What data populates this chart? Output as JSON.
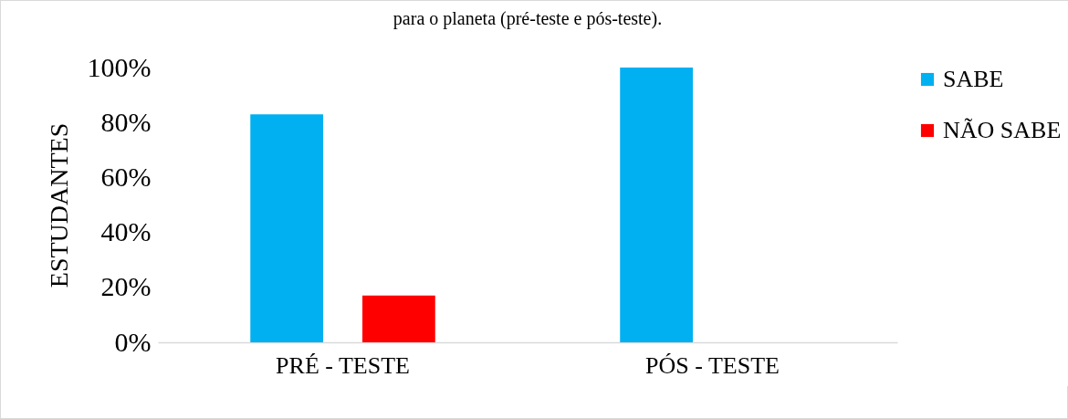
{
  "chart_data": {
    "type": "bar",
    "title": "para o planeta (pré-teste e pós-teste).",
    "ylabel": "ESTUDANTES",
    "categories": [
      "PRÉ - TESTE",
      "PÓS - TESTE"
    ],
    "series": [
      {
        "name": "SABE",
        "color": "#00b0f0",
        "values": [
          83,
          100
        ]
      },
      {
        "name": "NÃO SABE",
        "color": "#ff0000",
        "values": [
          17,
          0
        ]
      }
    ],
    "ylim": [
      0,
      100
    ],
    "yticks": [
      {
        "value": 0,
        "label": "0%"
      },
      {
        "value": 20,
        "label": "20%"
      },
      {
        "value": 40,
        "label": "40%"
      },
      {
        "value": 60,
        "label": "60%"
      },
      {
        "value": 80,
        "label": "80%"
      },
      {
        "value": 100,
        "label": "100%"
      }
    ],
    "grid": false,
    "legend": "right"
  }
}
